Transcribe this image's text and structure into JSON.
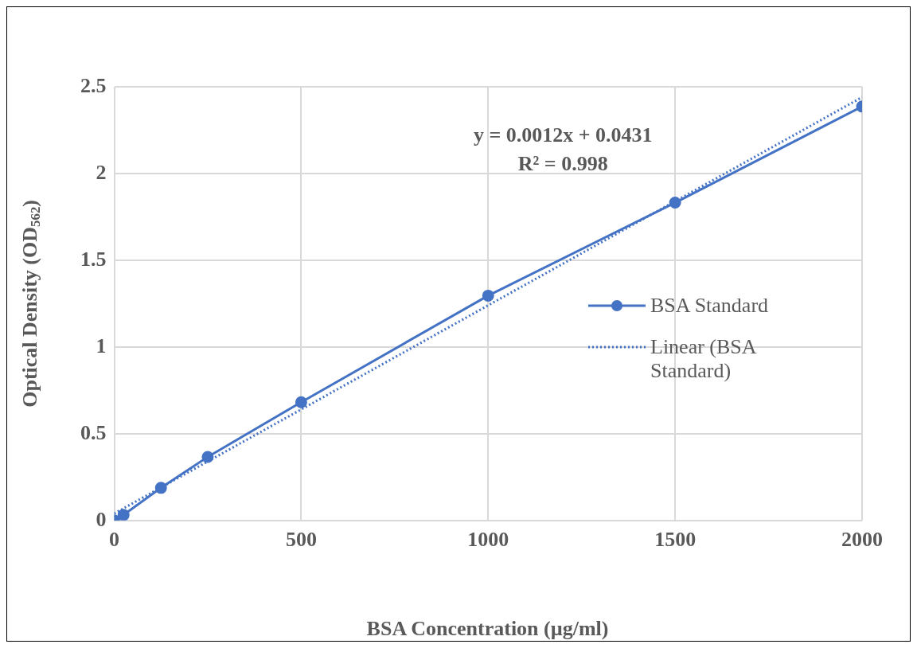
{
  "chart_data": {
    "type": "line",
    "xlabel": "BSA Concentration (µg/ml)",
    "ylabel": "Optical Density (OD$_{562}$)",
    "xlim": [
      0,
      2000
    ],
    "xticks": [
      0,
      500,
      1000,
      1500,
      2000
    ],
    "ylim": [
      0,
      2.5
    ],
    "yticks": [
      0,
      0.5,
      1,
      1.5,
      2,
      2.5
    ],
    "series": [
      {
        "name": "BSA Standard",
        "color": "#4472c4",
        "x": [
          0,
          25,
          125,
          250,
          500,
          1000,
          1500,
          2000
        ],
        "values": [
          0,
          0.032,
          0.188,
          0.366,
          0.682,
          1.296,
          1.832,
          2.386
        ],
        "marker": "circle",
        "line_style": "solid"
      },
      {
        "name": "Linear (BSA Standard)",
        "color": "#4472c4",
        "x": [
          0,
          2000
        ],
        "values": [
          0.04,
          2.44
        ],
        "marker": "none",
        "line_style": "dotted"
      }
    ],
    "annotations": [
      "y = 0.0012x + 0.0431",
      "R² = 0.998"
    ],
    "grid": true,
    "legend": "right"
  }
}
